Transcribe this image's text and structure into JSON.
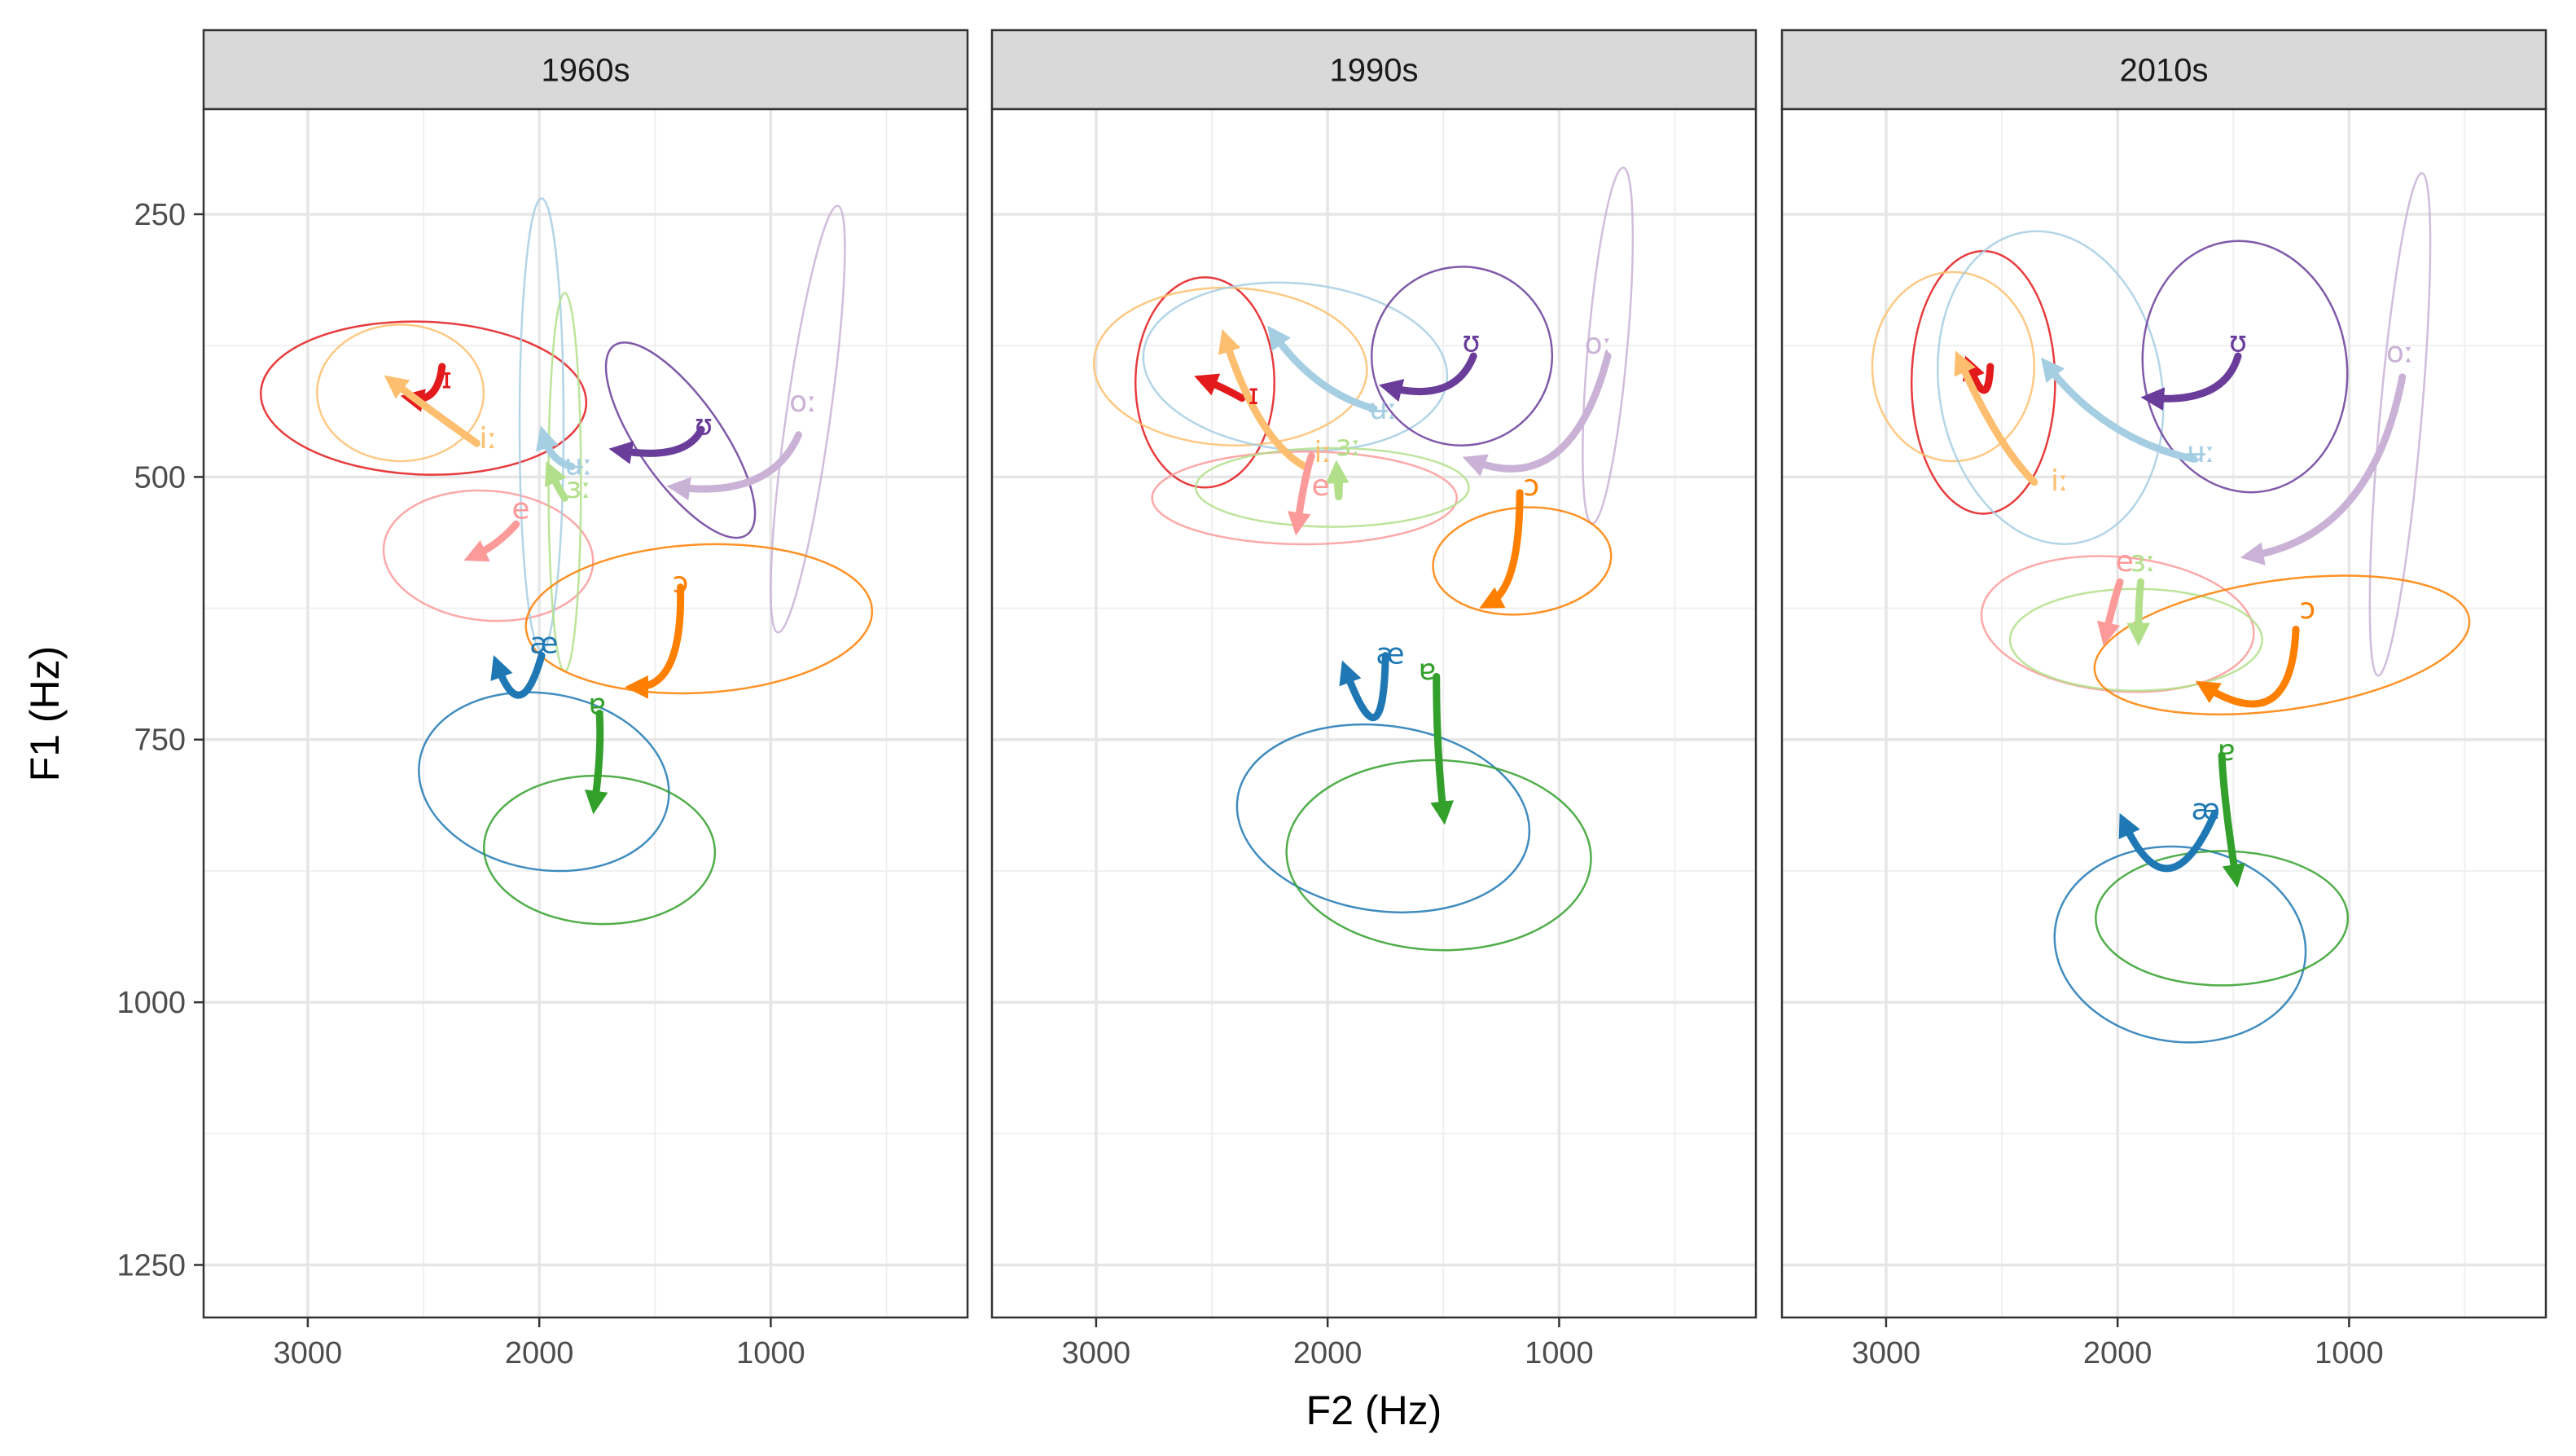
{
  "chart_data": {
    "type": "vowel-formant-trajectories",
    "xlabel": "F2 (Hz)",
    "ylabel": "F1 (Hz)",
    "x_reversed": true,
    "y_reversed": true,
    "xlim": [
      3450,
      150
    ],
    "ylim": [
      150,
      1300
    ],
    "x_ticks": [
      3000,
      2000,
      1000
    ],
    "y_ticks": [
      250,
      500,
      750,
      1000,
      1250
    ],
    "grid": true,
    "colors": {
      "ɪ": "#e31a1c",
      "iː": "#fdbf6f",
      "e": "#fb9a99",
      "ɜː": "#b2df8a",
      "ɐ": "#33a02c",
      "æ": "#1f78b4",
      "ʉː": "#a6cee3",
      "ʊ": "#6a3d9a",
      "oː": "#cab2d6",
      "ɔ": "#ff7f00"
    },
    "panels": [
      {
        "title": "1960s",
        "ellipses": [
          {
            "vowel": "ɪ",
            "cx": 2500,
            "cy": 425,
            "rx": 330,
            "ry": 155,
            "angle": 92
          },
          {
            "vowel": "iː",
            "cx": 2600,
            "cy": 420,
            "rx": 360,
            "ry": 65,
            "angle": 0
          },
          {
            "vowel": "e",
            "cx": 2220,
            "cy": 575,
            "rx": 280,
            "ry": 100,
            "angle": 95
          },
          {
            "vowel": "ʉː",
            "cx": 1990,
            "cy": 450,
            "rx": 95,
            "ry": 215,
            "angle": 0
          },
          {
            "vowel": "ɜː",
            "cx": 1890,
            "cy": 505,
            "rx": 70,
            "ry": 180,
            "angle": 0
          },
          {
            "vowel": "ʊ",
            "cx": 1390,
            "cy": 465,
            "rx": 180,
            "ry": 110,
            "angle": -35
          },
          {
            "vowel": "oː",
            "cx": 840,
            "cy": 445,
            "rx": 95,
            "ry": 205,
            "angle": 8
          },
          {
            "vowel": "æ",
            "cx": 1980,
            "cy": 790,
            "rx": 380,
            "ry": 120,
            "angle": -80
          },
          {
            "vowel": "ɐ",
            "cx": 1740,
            "cy": 855,
            "rx": 320,
            "ry": 110,
            "angle": 92
          },
          {
            "vowel": "ɔ",
            "cx": 1310,
            "cy": 635,
            "rx": 320,
            "ry": 165,
            "angle": 87
          }
        ],
        "trajectories": [
          {
            "vowel": "ɪ",
            "points": [
              [
                2420,
                395
              ],
              [
                2440,
                430
              ],
              [
                2550,
                425
              ]
            ]
          },
          {
            "vowel": "iː",
            "points": [
              [
                2270,
                468
              ],
              [
                2450,
                440
              ],
              [
                2630,
                410
              ]
            ]
          },
          {
            "vowel": "e",
            "points": [
              [
                2100,
                545
              ],
              [
                2180,
                565
              ],
              [
                2280,
                575
              ]
            ]
          },
          {
            "vowel": "ʉː",
            "points": [
              [
                1860,
                490
              ],
              [
                1950,
                485
              ],
              [
                1980,
                462
              ]
            ]
          },
          {
            "vowel": "ɜː",
            "points": [
              [
                1890,
                520
              ],
              [
                1920,
                510
              ],
              [
                1950,
                495
              ]
            ]
          },
          {
            "vowel": "ʊ",
            "points": [
              [
                1300,
                455
              ],
              [
                1370,
                485
              ],
              [
                1650,
                475
              ]
            ]
          },
          {
            "vowel": "oː",
            "points": [
              [
                880,
                460
              ],
              [
                1000,
                520
              ],
              [
                1400,
                510
              ]
            ]
          },
          {
            "vowel": "æ",
            "points": [
              [
                1990,
                670
              ],
              [
                2080,
                740
              ],
              [
                2180,
                680
              ]
            ]
          },
          {
            "vowel": "ɐ",
            "points": [
              [
                1740,
                725
              ],
              [
                1730,
                760
              ],
              [
                1760,
                810
              ]
            ]
          },
          {
            "vowel": "ɔ",
            "points": [
              [
                1390,
                605
              ],
              [
                1380,
                700
              ],
              [
                1580,
                700
              ]
            ]
          }
        ],
        "labels": [
          {
            "text": "ɪ",
            "vowel": "ɪ",
            "x": 2400,
            "y": 408
          },
          {
            "text": "iː",
            "vowel": "iː",
            "x": 2220,
            "y": 465
          },
          {
            "text": "e",
            "vowel": "e",
            "x": 2080,
            "y": 532
          },
          {
            "text": "ʉː",
            "vowel": "ʉː",
            "x": 1830,
            "y": 490
          },
          {
            "text": "ɜː",
            "vowel": "ɜː",
            "x": 1830,
            "y": 512
          },
          {
            "text": "ʊ",
            "vowel": "ʊ",
            "x": 1290,
            "y": 452
          },
          {
            "text": "oː",
            "vowel": "oː",
            "x": 860,
            "y": 430
          },
          {
            "text": "æ",
            "vowel": "æ",
            "x": 1980,
            "y": 660
          },
          {
            "text": "ɐ",
            "vowel": "ɐ",
            "x": 1750,
            "y": 718
          },
          {
            "text": "ɔ",
            "vowel": "ɔ",
            "x": 1390,
            "y": 602
          }
        ]
      },
      {
        "title": "1990s",
        "ellipses": [
          {
            "vowel": "ɪ",
            "cx": 2530,
            "cy": 410,
            "rx": 300,
            "ry": 100,
            "angle": 0
          },
          {
            "vowel": "iː",
            "cx": 2420,
            "cy": 395,
            "rx": 340,
            "ry": 130,
            "angle": 92
          },
          {
            "vowel": "ʉː",
            "cx": 2140,
            "cy": 395,
            "rx": 360,
            "ry": 145,
            "angle": 95
          },
          {
            "vowel": "e",
            "cx": 2100,
            "cy": 520,
            "rx": 200,
            "ry": 145,
            "angle": 90
          },
          {
            "vowel": "ɜː",
            "cx": 1980,
            "cy": 510,
            "rx": 170,
            "ry": 130,
            "angle": 90
          },
          {
            "vowel": "ʊ",
            "cx": 1420,
            "cy": 385,
            "rx": 390,
            "ry": 85,
            "angle": -10
          },
          {
            "vowel": "oː",
            "cx": 790,
            "cy": 375,
            "rx": 85,
            "ry": 170,
            "angle": 5
          },
          {
            "vowel": "ɔ",
            "cx": 1160,
            "cy": 580,
            "rx": 230,
            "ry": 85,
            "angle": 85
          },
          {
            "vowel": "æ",
            "cx": 1760,
            "cy": 825,
            "rx": 400,
            "ry": 140,
            "angle": -82
          },
          {
            "vowel": "ɐ",
            "cx": 1520,
            "cy": 860,
            "rx": 410,
            "ry": 145,
            "angle": 92
          }
        ],
        "trajectories": [
          {
            "vowel": "ɪ",
            "points": [
              [
                2370,
                425
              ],
              [
                2450,
                415
              ],
              [
                2530,
                408
              ]
            ]
          },
          {
            "vowel": "iː",
            "points": [
              [
                2100,
                490
              ],
              [
                2300,
                465
              ],
              [
                2440,
                370
              ]
            ]
          },
          {
            "vowel": "ʉː",
            "points": [
              [
                1800,
                435
              ],
              [
                2050,
                420
              ],
              [
                2230,
                365
              ]
            ]
          },
          {
            "vowel": "e",
            "points": [
              [
                2070,
                480
              ],
              [
                2100,
                500
              ],
              [
                2130,
                545
              ]
            ]
          },
          {
            "vowel": "ɜː",
            "points": [
              [
                1950,
                500
              ],
              [
                1950,
                540
              ],
              [
                1960,
                495
              ]
            ]
          },
          {
            "vowel": "ʊ",
            "points": [
              [
                1370,
                385
              ],
              [
                1450,
                430
              ],
              [
                1730,
                415
              ]
            ]
          },
          {
            "vowel": "oː",
            "points": [
              [
                790,
                385
              ],
              [
                950,
                520
              ],
              [
                1370,
                485
              ]
            ]
          },
          {
            "vowel": "ɔ",
            "points": [
              [
                1170,
                515
              ],
              [
                1170,
                605
              ],
              [
                1300,
                620
              ]
            ]
          },
          {
            "vowel": "æ",
            "points": [
              [
                1750,
                670
              ],
              [
                1760,
                780
              ],
              [
                1920,
                685
              ]
            ]
          },
          {
            "vowel": "ɐ",
            "points": [
              [
                1530,
                690
              ],
              [
                1530,
                760
              ],
              [
                1500,
                820
              ]
            ]
          }
        ],
        "labels": [
          {
            "text": "ɪ",
            "vowel": "ɪ",
            "x": 2320,
            "y": 423
          },
          {
            "text": "ʉː",
            "vowel": "ʉː",
            "x": 1760,
            "y": 437
          },
          {
            "text": "ʊ",
            "vowel": "ʊ",
            "x": 1380,
            "y": 373
          },
          {
            "text": "oː",
            "vowel": "oː",
            "x": 830,
            "y": 375
          },
          {
            "text": "iː",
            "vowel": "iː",
            "x": 2020,
            "y": 478
          },
          {
            "text": "ɜː",
            "vowel": "ɜː",
            "x": 1910,
            "y": 472
          },
          {
            "text": "e",
            "vowel": "e",
            "x": 2030,
            "y": 510
          },
          {
            "text": "ɔ",
            "vowel": "ɔ",
            "x": 1120,
            "y": 510
          },
          {
            "text": "æ",
            "vowel": "æ",
            "x": 1730,
            "y": 670
          },
          {
            "text": "ɐ",
            "vowel": "ɐ",
            "x": 1570,
            "y": 685
          }
        ]
      },
      {
        "title": "2010s",
        "ellipses": [
          {
            "vowel": "ɪ",
            "cx": 2580,
            "cy": 410,
            "rx": 310,
            "ry": 125,
            "angle": 0
          },
          {
            "vowel": "iː",
            "cx": 2710,
            "cy": 395,
            "rx": 350,
            "ry": 90,
            "angle": 0
          },
          {
            "vowel": "ʉː",
            "cx": 2290,
            "cy": 415,
            "rx": 480,
            "ry": 150,
            "angle": -10
          },
          {
            "vowel": "ʊ",
            "cx": 1450,
            "cy": 395,
            "rx": 440,
            "ry": 120,
            "angle": -8
          },
          {
            "vowel": "oː",
            "cx": 780,
            "cy": 450,
            "rx": 90,
            "ry": 240,
            "angle": 5
          },
          {
            "vowel": "e",
            "cx": 2000,
            "cy": 640,
            "rx": 290,
            "ry": 130,
            "angle": 95
          },
          {
            "vowel": "ɜː",
            "cx": 1920,
            "cy": 655,
            "rx": 220,
            "ry": 120,
            "angle": 90
          },
          {
            "vowel": "ɔ",
            "cx": 1290,
            "cy": 660,
            "rx": 280,
            "ry": 180,
            "angle": 82
          },
          {
            "vowel": "æ",
            "cx": 1730,
            "cy": 945,
            "rx": 420,
            "ry": 120,
            "angle": -82
          },
          {
            "vowel": "ɐ",
            "cx": 1550,
            "cy": 920,
            "rx": 290,
            "ry": 120,
            "angle": 90
          }
        ],
        "trajectories": [
          {
            "vowel": "ɪ",
            "points": [
              [
                2550,
                395
              ],
              [
                2560,
                440
              ],
              [
                2640,
                395
              ]
            ]
          },
          {
            "vowel": "iː",
            "points": [
              [
                2360,
                505
              ],
              [
                2520,
                470
              ],
              [
                2680,
                390
              ]
            ]
          },
          {
            "vowel": "ʉː",
            "points": [
              [
                1670,
                483
              ],
              [
                2050,
                465
              ],
              [
                2300,
                395
              ]
            ]
          },
          {
            "vowel": "ʊ",
            "points": [
              [
                1480,
                385
              ],
              [
                1540,
                430
              ],
              [
                1850,
                425
              ]
            ]
          },
          {
            "vowel": "oː",
            "points": [
              [
                770,
                405
              ],
              [
                900,
                555
              ],
              [
                1420,
                575
              ]
            ]
          },
          {
            "vowel": "e",
            "points": [
              [
                1990,
                600
              ],
              [
                2020,
                620
              ],
              [
                2050,
                650
              ]
            ]
          },
          {
            "vowel": "ɜː",
            "points": [
              [
                1900,
                600
              ],
              [
                1910,
                620
              ],
              [
                1910,
                650
              ]
            ]
          },
          {
            "vowel": "ɔ",
            "points": [
              [
                1230,
                645
              ],
              [
                1250,
                750
              ],
              [
                1620,
                700
              ]
            ]
          },
          {
            "vowel": "æ",
            "points": [
              [
                1580,
                820
              ],
              [
                1780,
                920
              ],
              [
                1970,
                830
              ]
            ]
          },
          {
            "vowel": "ɐ",
            "points": [
              [
                1550,
                765
              ],
              [
                1540,
                810
              ],
              [
                1490,
                880
              ]
            ]
          }
        ],
        "labels": [
          {
            "text": "ʊ",
            "vowel": "ʊ",
            "x": 1480,
            "y": 373
          },
          {
            "text": "oː",
            "vowel": "oː",
            "x": 780,
            "y": 383
          },
          {
            "text": "iː",
            "vowel": "iː",
            "x": 2250,
            "y": 505
          },
          {
            "text": "ʉː",
            "vowel": "ʉː",
            "x": 1640,
            "y": 478
          },
          {
            "text": "e",
            "vowel": "e",
            "x": 1970,
            "y": 582
          },
          {
            "text": "ɜː",
            "vowel": "ɜː",
            "x": 1890,
            "y": 582
          },
          {
            "text": "ɔ",
            "vowel": "ɔ",
            "x": 1180,
            "y": 627
          },
          {
            "text": "ɐ",
            "vowel": "ɐ",
            "x": 1530,
            "y": 762
          },
          {
            "text": "æ",
            "vowel": "æ",
            "x": 1620,
            "y": 818
          }
        ]
      }
    ]
  }
}
